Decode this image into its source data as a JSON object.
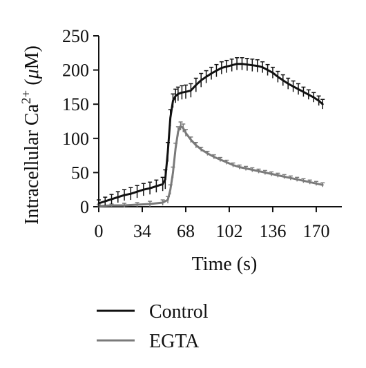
{
  "chart_data": {
    "type": "line",
    "title": "",
    "xlabel": "Time (s)",
    "ylabel": {
      "main": "Intracellular Ca",
      "superscript": "2+",
      "unit_open": " (",
      "unit_mu": "μ",
      "unit_rest": "M)"
    },
    "xlim": [
      0,
      190
    ],
    "ylim": [
      0,
      250
    ],
    "x_ticks": [
      "0",
      "34",
      "68",
      "102",
      "136",
      "170"
    ],
    "x_tick_values": [
      0,
      34,
      68,
      102,
      136,
      170
    ],
    "y_ticks": [
      "0",
      "50",
      "100",
      "150",
      "200",
      "250"
    ],
    "y_tick_values": [
      0,
      50,
      100,
      150,
      200,
      250
    ],
    "grid": false,
    "legend_position": "bottom",
    "error_bars": true,
    "series": [
      {
        "name": "Control",
        "color": "#111111",
        "points": [
          [
            0,
            5
          ],
          [
            5,
            8
          ],
          [
            10,
            11
          ],
          [
            15,
            14
          ],
          [
            20,
            17
          ],
          [
            25,
            19
          ],
          [
            30,
            22
          ],
          [
            35,
            25
          ],
          [
            40,
            27
          ],
          [
            45,
            30
          ],
          [
            50,
            33
          ],
          [
            52,
            40
          ],
          [
            54,
            80
          ],
          [
            56,
            130
          ],
          [
            58,
            155
          ],
          [
            60,
            162
          ],
          [
            62,
            165
          ],
          [
            65,
            167
          ],
          [
            68,
            168
          ],
          [
            72,
            170
          ],
          [
            76,
            178
          ],
          [
            80,
            185
          ],
          [
            84,
            190
          ],
          [
            88,
            195
          ],
          [
            92,
            199
          ],
          [
            96,
            203
          ],
          [
            100,
            205
          ],
          [
            104,
            207
          ],
          [
            108,
            209
          ],
          [
            112,
            209
          ],
          [
            116,
            208
          ],
          [
            120,
            207
          ],
          [
            124,
            206
          ],
          [
            128,
            204
          ],
          [
            132,
            200
          ],
          [
            136,
            196
          ],
          [
            140,
            190
          ],
          [
            144,
            185
          ],
          [
            148,
            180
          ],
          [
            152,
            176
          ],
          [
            156,
            172
          ],
          [
            160,
            168
          ],
          [
            164,
            164
          ],
          [
            168,
            160
          ],
          [
            172,
            155
          ],
          [
            175,
            150
          ]
        ],
        "errors": [
          5,
          6,
          7,
          8,
          8,
          9,
          9,
          9,
          9,
          9,
          10,
          14,
          14,
          12,
          10,
          10,
          10,
          10,
          10,
          10,
          10,
          10,
          9,
          9,
          9,
          9,
          9,
          9,
          9,
          9,
          9,
          9,
          9,
          8,
          8,
          8,
          8,
          8,
          8,
          8,
          8,
          7,
          7,
          7,
          7,
          7
        ]
      },
      {
        "name": "EGTA",
        "color": "#7a7a7a",
        "points": [
          [
            0,
            1
          ],
          [
            10,
            2
          ],
          [
            20,
            2
          ],
          [
            30,
            3
          ],
          [
            40,
            4
          ],
          [
            50,
            6
          ],
          [
            54,
            10
          ],
          [
            56,
            25
          ],
          [
            58,
            50
          ],
          [
            60,
            85
          ],
          [
            62,
            110
          ],
          [
            64,
            118
          ],
          [
            66,
            115
          ],
          [
            68,
            108
          ],
          [
            72,
            98
          ],
          [
            76,
            90
          ],
          [
            80,
            84
          ],
          [
            85,
            78
          ],
          [
            90,
            73
          ],
          [
            95,
            69
          ],
          [
            100,
            65
          ],
          [
            105,
            61
          ],
          [
            110,
            58
          ],
          [
            115,
            56
          ],
          [
            120,
            54
          ],
          [
            125,
            52
          ],
          [
            130,
            50
          ],
          [
            135,
            48
          ],
          [
            140,
            46
          ],
          [
            145,
            44
          ],
          [
            150,
            42
          ],
          [
            155,
            40
          ],
          [
            160,
            38
          ],
          [
            165,
            36
          ],
          [
            170,
            34
          ],
          [
            175,
            32
          ]
        ],
        "errors": [
          2,
          2,
          3,
          3,
          4,
          4,
          5,
          7,
          8,
          8,
          7,
          6,
          6,
          5,
          4,
          4,
          3,
          3,
          3,
          3,
          3,
          3,
          3,
          3,
          3,
          3,
          3,
          3,
          3,
          3,
          3,
          3,
          3,
          3,
          3,
          3
        ]
      }
    ]
  }
}
